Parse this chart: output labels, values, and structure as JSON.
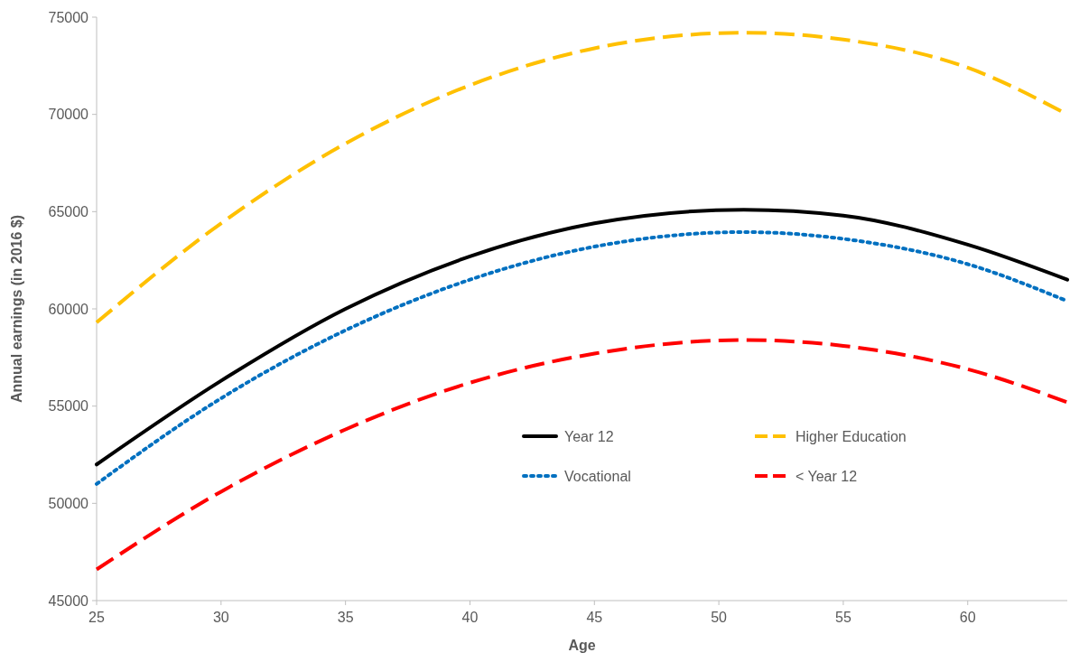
{
  "chart_data": {
    "type": "line",
    "xlabel": "Age",
    "ylabel": "Annual earnings (in 2016 $)",
    "x": [
      25,
      30,
      35,
      40,
      45,
      51,
      55,
      60,
      64
    ],
    "xlim": [
      25,
      64
    ],
    "xticks": [
      25,
      30,
      35,
      40,
      45,
      50,
      55,
      60
    ],
    "ylim": [
      45000,
      75000
    ],
    "yticks": [
      45000,
      50000,
      55000,
      60000,
      65000,
      70000,
      75000
    ],
    "grid": false,
    "legend": "bottom right",
    "marker": "none",
    "series": [
      {
        "name": "Year 12",
        "color": "#000000",
        "line_style": "solid",
        "values": [
          52000,
          56300,
          60000,
          62700,
          64400,
          65100,
          64800,
          63300,
          61500
        ]
      },
      {
        "name": "Higher Education",
        "color": "#ffc000",
        "line_style": "dashed",
        "values": [
          59300,
          64400,
          68500,
          71500,
          73400,
          74200,
          73850,
          72400,
          70000
        ]
      },
      {
        "name": "Vocational",
        "color": "#0070c0",
        "line_style": "dotted",
        "values": [
          51000,
          55400,
          58900,
          61500,
          63200,
          63950,
          63600,
          62300,
          60400
        ]
      },
      {
        "name": "< Year 12",
        "color": "#ff0000",
        "line_style": "dashed",
        "values": [
          46600,
          50600,
          53800,
          56200,
          57700,
          58400,
          58100,
          56900,
          55200
        ]
      }
    ]
  }
}
